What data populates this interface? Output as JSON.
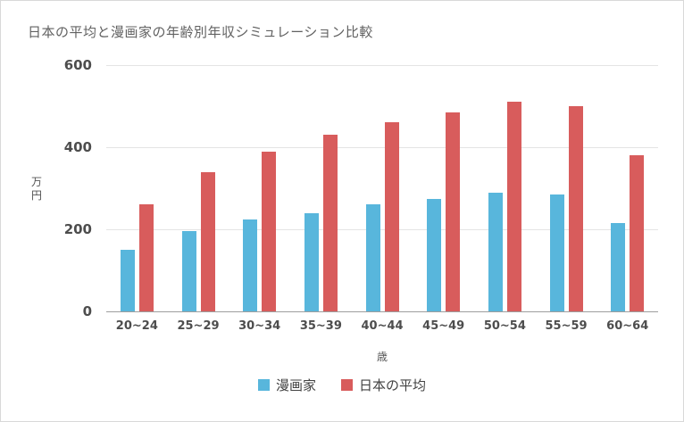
{
  "chart_data": {
    "type": "bar",
    "title": "日本の平均と漫画家の年齢別年収シミュレーション比較",
    "categories": [
      "20~24",
      "25~29",
      "30~34",
      "35~39",
      "40~44",
      "45~49",
      "50~54",
      "55~59",
      "60~64"
    ],
    "series": [
      {
        "name": "漫画家",
        "color": "#58B6DC",
        "values": [
          150,
          195,
          225,
          240,
          260,
          275,
          290,
          285,
          215
        ]
      },
      {
        "name": "日本の平均",
        "color": "#D85C5C",
        "values": [
          260,
          340,
          390,
          430,
          460,
          485,
          510,
          500,
          380
        ]
      }
    ],
    "xlabel": "歳",
    "ylabel": "万円",
    "ylim": [
      0,
      600
    ],
    "yticks": [
      0,
      200,
      400,
      600
    ],
    "grid": true,
    "legend_position": "bottom"
  }
}
